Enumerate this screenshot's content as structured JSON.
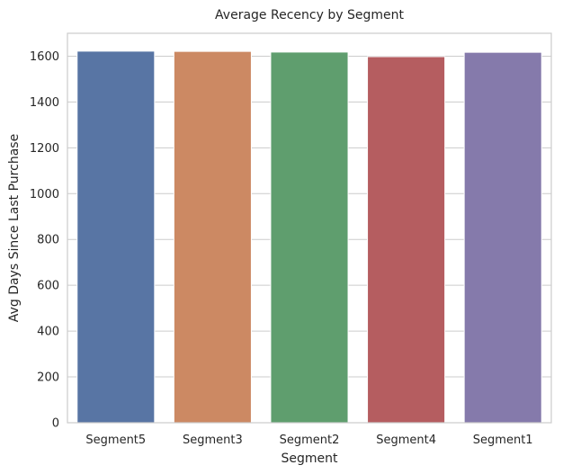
{
  "chart_data": {
    "type": "bar",
    "title": "Average Recency by Segment",
    "xlabel": "Segment",
    "ylabel": "Avg Days Since Last Purchase",
    "categories": [
      "Segment5",
      "Segment3",
      "Segment2",
      "Segment4",
      "Segment1"
    ],
    "values": [
      1622,
      1621,
      1618,
      1598,
      1617
    ],
    "ylim": [
      0,
      1700
    ],
    "yticks": [
      0,
      200,
      400,
      600,
      800,
      1000,
      1200,
      1400,
      1600
    ],
    "grid": "horizontal",
    "colors": [
      "#5875a4",
      "#cc8963",
      "#5f9e6e",
      "#b55d60",
      "#857aab"
    ],
    "background": "#ffffff",
    "gridColor": "#cccccc"
  }
}
